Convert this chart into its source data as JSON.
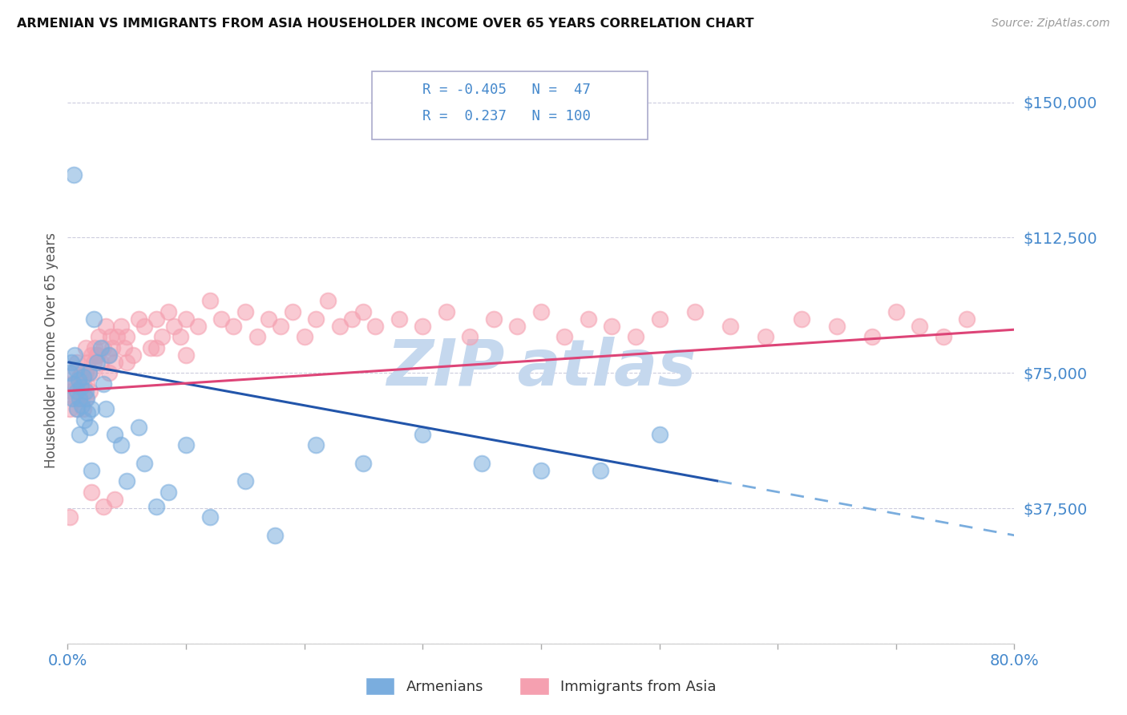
{
  "title": "ARMENIAN VS IMMIGRANTS FROM ASIA HOUSEHOLDER INCOME OVER 65 YEARS CORRELATION CHART",
  "source": "Source: ZipAtlas.com",
  "ylabel": "Householder Income Over 65 years",
  "legend_armenians": "Armenians",
  "legend_immigrants": "Immigrants from Asia",
  "armenian_R": -0.405,
  "armenian_N": 47,
  "immigrants_R": 0.237,
  "immigrants_N": 100,
  "yticks": [
    0,
    37500,
    75000,
    112500,
    150000
  ],
  "ytick_labels": [
    "",
    "$37,500",
    "$75,000",
    "$112,500",
    "$150,000"
  ],
  "xmin": 0.0,
  "xmax": 0.8,
  "ymin": 0,
  "ymax": 162500,
  "blue_scatter_color": "#7aadde",
  "pink_scatter_color": "#f5a0b0",
  "blue_line_color": "#2255aa",
  "pink_line_color": "#dd4477",
  "axis_label_color": "#4488cc",
  "tick_color": "#4488cc",
  "watermark_color": "#c5d8ee",
  "background_color": "#ffffff",
  "grid_color": "#ccccdd",
  "armenian_x": [
    0.002,
    0.003,
    0.004,
    0.005,
    0.006,
    0.007,
    0.008,
    0.008,
    0.009,
    0.01,
    0.011,
    0.012,
    0.013,
    0.014,
    0.015,
    0.016,
    0.017,
    0.018,
    0.019,
    0.02,
    0.022,
    0.025,
    0.028,
    0.03,
    0.032,
    0.035,
    0.04,
    0.045,
    0.05,
    0.06,
    0.065,
    0.075,
    0.085,
    0.1,
    0.12,
    0.15,
    0.175,
    0.21,
    0.25,
    0.3,
    0.35,
    0.4,
    0.45,
    0.5,
    0.01,
    0.02,
    0.005
  ],
  "armenian_y": [
    75000,
    78000,
    68000,
    72000,
    80000,
    76000,
    70000,
    65000,
    73000,
    68000,
    71000,
    66000,
    74000,
    62000,
    70000,
    68000,
    64000,
    75000,
    60000,
    65000,
    90000,
    78000,
    82000,
    72000,
    65000,
    80000,
    58000,
    55000,
    45000,
    60000,
    50000,
    38000,
    42000,
    55000,
    35000,
    45000,
    30000,
    55000,
    50000,
    58000,
    50000,
    48000,
    48000,
    58000,
    58000,
    48000,
    130000
  ],
  "immigrants_x": [
    0.002,
    0.003,
    0.004,
    0.005,
    0.005,
    0.006,
    0.007,
    0.008,
    0.008,
    0.009,
    0.01,
    0.01,
    0.011,
    0.012,
    0.012,
    0.013,
    0.013,
    0.014,
    0.015,
    0.015,
    0.016,
    0.017,
    0.018,
    0.019,
    0.02,
    0.021,
    0.022,
    0.023,
    0.025,
    0.026,
    0.028,
    0.03,
    0.032,
    0.034,
    0.036,
    0.038,
    0.04,
    0.042,
    0.045,
    0.048,
    0.05,
    0.055,
    0.06,
    0.065,
    0.07,
    0.075,
    0.08,
    0.085,
    0.09,
    0.095,
    0.1,
    0.11,
    0.12,
    0.13,
    0.14,
    0.15,
    0.16,
    0.17,
    0.18,
    0.19,
    0.2,
    0.21,
    0.22,
    0.23,
    0.24,
    0.25,
    0.26,
    0.28,
    0.3,
    0.32,
    0.34,
    0.36,
    0.38,
    0.4,
    0.42,
    0.44,
    0.46,
    0.48,
    0.5,
    0.53,
    0.56,
    0.59,
    0.62,
    0.65,
    0.68,
    0.7,
    0.72,
    0.74,
    0.76,
    0.008,
    0.015,
    0.025,
    0.035,
    0.05,
    0.075,
    0.1,
    0.002,
    0.02,
    0.03,
    0.04
  ],
  "immigrants_y": [
    65000,
    70000,
    72000,
    68000,
    75000,
    72000,
    68000,
    70000,
    65000,
    72000,
    68000,
    74000,
    70000,
    75000,
    68000,
    72000,
    65000,
    70000,
    75000,
    68000,
    72000,
    78000,
    75000,
    70000,
    80000,
    75000,
    78000,
    82000,
    80000,
    85000,
    78000,
    82000,
    88000,
    80000,
    85000,
    82000,
    78000,
    85000,
    88000,
    82000,
    85000,
    80000,
    90000,
    88000,
    82000,
    90000,
    85000,
    92000,
    88000,
    85000,
    90000,
    88000,
    95000,
    90000,
    88000,
    92000,
    85000,
    90000,
    88000,
    92000,
    85000,
    90000,
    95000,
    88000,
    90000,
    92000,
    88000,
    90000,
    88000,
    92000,
    85000,
    90000,
    88000,
    92000,
    85000,
    90000,
    88000,
    85000,
    90000,
    92000,
    88000,
    85000,
    90000,
    88000,
    85000,
    92000,
    88000,
    85000,
    90000,
    78000,
    82000,
    80000,
    75000,
    78000,
    82000,
    80000,
    35000,
    42000,
    38000,
    40000
  ]
}
